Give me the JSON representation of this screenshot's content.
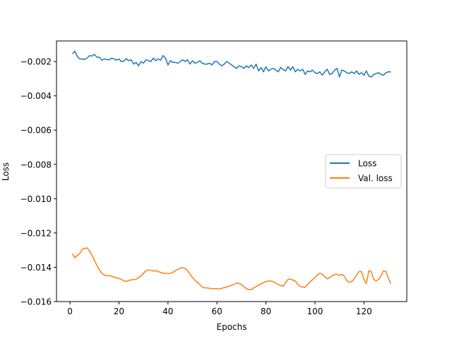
{
  "chart_data": {
    "type": "line",
    "title": "",
    "xlabel": "Epochs",
    "ylabel": "Loss",
    "xlim": [
      -5.5,
      137.5
    ],
    "ylim": [
      -0.016,
      -0.0008
    ],
    "x_ticks": [
      0,
      20,
      40,
      60,
      80,
      100,
      120
    ],
    "y_ticks": [
      -0.016,
      -0.014,
      -0.012,
      -0.01,
      -0.008,
      -0.006,
      -0.004,
      -0.002
    ],
    "x_tick_labels": [
      "0",
      "20",
      "40",
      "60",
      "80",
      "100",
      "120"
    ],
    "y_tick_labels": [
      "−0.016",
      "−0.014",
      "−0.012",
      "−0.010",
      "−0.008",
      "−0.006",
      "−0.004",
      "−0.002"
    ],
    "grid": false,
    "legend": "center-right",
    "series": [
      {
        "name": "Loss",
        "color": "#1f77b4",
        "x": [
          1,
          2,
          3,
          4,
          5,
          6,
          7,
          8,
          9,
          10,
          11,
          12,
          13,
          14,
          15,
          16,
          17,
          18,
          19,
          20,
          21,
          22,
          23,
          24,
          25,
          26,
          27,
          28,
          29,
          30,
          31,
          32,
          33,
          34,
          35,
          36,
          37,
          38,
          39,
          40,
          41,
          42,
          43,
          44,
          45,
          46,
          47,
          48,
          49,
          50,
          51,
          52,
          53,
          54,
          55,
          56,
          57,
          58,
          59,
          60,
          61,
          62,
          63,
          64,
          65,
          66,
          67,
          68,
          69,
          70,
          71,
          72,
          73,
          74,
          75,
          76,
          77,
          78,
          79,
          80,
          81,
          82,
          83,
          84,
          85,
          86,
          87,
          88,
          89,
          90,
          91,
          92,
          93,
          94,
          95,
          96,
          97,
          98,
          99,
          100,
          101,
          102,
          103,
          104,
          105,
          106,
          107,
          108,
          109,
          110,
          111,
          112,
          113,
          114,
          115,
          116,
          117,
          118,
          119,
          120,
          121,
          122,
          123,
          124,
          125,
          126,
          127,
          128,
          129,
          130,
          131
        ],
        "y": [
          -0.00155,
          -0.0014,
          -0.0017,
          -0.00185,
          -0.00185,
          -0.00188,
          -0.0018,
          -0.00165,
          -0.00168,
          -0.00158,
          -0.00175,
          -0.00175,
          -0.00192,
          -0.00185,
          -0.00188,
          -0.0019,
          -0.0018,
          -0.00185,
          -0.00192,
          -0.00185,
          -0.002,
          -0.00198,
          -0.00183,
          -0.00195,
          -0.0019,
          -0.00215,
          -0.00205,
          -0.00225,
          -0.002,
          -0.0021,
          -0.0019,
          -0.00195,
          -0.002,
          -0.0018,
          -0.00195,
          -0.00185,
          -0.00192,
          -0.00165,
          -0.0018,
          -0.0022,
          -0.00195,
          -0.00205,
          -0.00205,
          -0.0021,
          -0.002,
          -0.0019,
          -0.002,
          -0.0019,
          -0.00215,
          -0.00195,
          -0.0021,
          -0.00205,
          -0.00195,
          -0.0021,
          -0.00215,
          -0.00215,
          -0.0021,
          -0.0022,
          -0.002,
          -0.002,
          -0.00215,
          -0.00225,
          -0.00215,
          -0.002,
          -0.0021,
          -0.0022,
          -0.0023,
          -0.0024,
          -0.00225,
          -0.0023,
          -0.0024,
          -0.00225,
          -0.00235,
          -0.0022,
          -0.0024,
          -0.00215,
          -0.00255,
          -0.00235,
          -0.0026,
          -0.0023,
          -0.00255,
          -0.00245,
          -0.0024,
          -0.0025,
          -0.0026,
          -0.00235,
          -0.00245,
          -0.00255,
          -0.0023,
          -0.0025,
          -0.0023,
          -0.0026,
          -0.00245,
          -0.00255,
          -0.00245,
          -0.00275,
          -0.00255,
          -0.0026,
          -0.0025,
          -0.00265,
          -0.0027,
          -0.0026,
          -0.0028,
          -0.0026,
          -0.00245,
          -0.00275,
          -0.0027,
          -0.0025,
          -0.0024,
          -0.0029,
          -0.0025,
          -0.00255,
          -0.00265,
          -0.0027,
          -0.0026,
          -0.0027,
          -0.00255,
          -0.00275,
          -0.00265,
          -0.0028,
          -0.00255,
          -0.00285,
          -0.0029,
          -0.00275,
          -0.0027,
          -0.00265,
          -0.00275,
          -0.0028,
          -0.00265,
          -0.0026,
          -0.0026
        ]
      },
      {
        "name": "Val. loss",
        "color": "#ff7f0e",
        "x": [
          1,
          2,
          3,
          4,
          5,
          6,
          7,
          8,
          9,
          10,
          11,
          12,
          13,
          14,
          15,
          16,
          17,
          18,
          19,
          20,
          21,
          22,
          23,
          24,
          25,
          26,
          27,
          28,
          29,
          30,
          31,
          32,
          33,
          34,
          35,
          36,
          37,
          38,
          39,
          40,
          41,
          42,
          43,
          44,
          45,
          46,
          47,
          48,
          49,
          50,
          51,
          52,
          53,
          54,
          55,
          56,
          57,
          58,
          59,
          60,
          61,
          62,
          63,
          64,
          65,
          66,
          67,
          68,
          69,
          70,
          71,
          72,
          73,
          74,
          75,
          76,
          77,
          78,
          79,
          80,
          81,
          82,
          83,
          84,
          85,
          86,
          87,
          88,
          89,
          90,
          91,
          92,
          93,
          94,
          95,
          96,
          97,
          98,
          99,
          100,
          101,
          102,
          103,
          104,
          105,
          106,
          107,
          108,
          109,
          110,
          111,
          112,
          113,
          114,
          115,
          116,
          117,
          118,
          119,
          120,
          121,
          122,
          123,
          124,
          125,
          126,
          127,
          128,
          129,
          130,
          131
        ],
        "y": [
          -0.0132,
          -0.01345,
          -0.0133,
          -0.0132,
          -0.01295,
          -0.0129,
          -0.01287,
          -0.01305,
          -0.0133,
          -0.0136,
          -0.0139,
          -0.01415,
          -0.01435,
          -0.01445,
          -0.0145,
          -0.01448,
          -0.01452,
          -0.01458,
          -0.01462,
          -0.01466,
          -0.0147,
          -0.0148,
          -0.01482,
          -0.01477,
          -0.01473,
          -0.01473,
          -0.0147,
          -0.0146,
          -0.0145,
          -0.01435,
          -0.0142,
          -0.01415,
          -0.01418,
          -0.01422,
          -0.0142,
          -0.01425,
          -0.0143,
          -0.01435,
          -0.01435,
          -0.01437,
          -0.01435,
          -0.0143,
          -0.0142,
          -0.01412,
          -0.01405,
          -0.01402,
          -0.01407,
          -0.0142,
          -0.0144,
          -0.0146,
          -0.01475,
          -0.01488,
          -0.015,
          -0.01515,
          -0.0152,
          -0.0152,
          -0.01523,
          -0.01525,
          -0.01525,
          -0.01525,
          -0.01527,
          -0.01523,
          -0.01518,
          -0.01515,
          -0.0151,
          -0.01505,
          -0.015,
          -0.01492,
          -0.01495,
          -0.015,
          -0.01512,
          -0.01525,
          -0.0153,
          -0.0153,
          -0.0152,
          -0.01513,
          -0.01505,
          -0.01495,
          -0.0149,
          -0.01483,
          -0.0148,
          -0.0148,
          -0.01485,
          -0.01492,
          -0.015,
          -0.01507,
          -0.0151,
          -0.0149,
          -0.0147,
          -0.01468,
          -0.01475,
          -0.0148,
          -0.015,
          -0.01512,
          -0.01515,
          -0.01517,
          -0.015,
          -0.01485,
          -0.01473,
          -0.0146,
          -0.01445,
          -0.01435,
          -0.0144,
          -0.01455,
          -0.01468,
          -0.0146,
          -0.0145,
          -0.01443,
          -0.0144,
          -0.01448,
          -0.0144,
          -0.01452,
          -0.01478,
          -0.01488,
          -0.01483,
          -0.01468,
          -0.01445,
          -0.01425,
          -0.01425,
          -0.0147,
          -0.01495,
          -0.0142,
          -0.01425,
          -0.0147,
          -0.0148,
          -0.0147,
          -0.0145,
          -0.0142,
          -0.01425,
          -0.01465,
          -0.01495
        ]
      }
    ]
  }
}
